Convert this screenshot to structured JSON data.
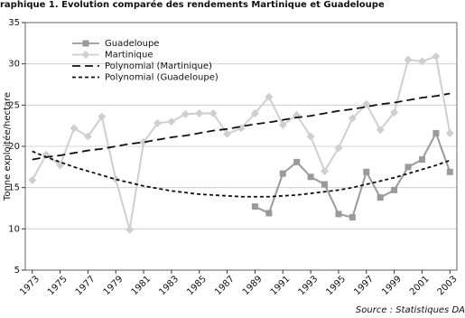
{
  "chart_data": {
    "type": "line",
    "title": "raphique 1. Evolution comparée des rendements Martinique et Guadeloupe",
    "y_label": "Tonne exploitée/hectare",
    "source": "Source : Statistiques DA",
    "x": [
      1973,
      1974,
      1975,
      1976,
      1977,
      1978,
      1979,
      1980,
      1981,
      1982,
      1983,
      1984,
      1985,
      1986,
      1987,
      1988,
      1989,
      1990,
      1991,
      1992,
      1993,
      1994,
      1995,
      1996,
      1997,
      1998,
      1999,
      2000,
      2001,
      2002,
      2003
    ],
    "xlim": [
      1972.5,
      2003.5
    ],
    "xticks": [
      1973,
      1975,
      1977,
      1979,
      1981,
      1983,
      1985,
      1987,
      1989,
      1991,
      1993,
      1995,
      1997,
      1999,
      2001,
      2003
    ],
    "ylim": [
      5,
      35
    ],
    "yticks": [
      5,
      10,
      15,
      20,
      25,
      30,
      35
    ],
    "grid": true,
    "series": [
      {
        "name": "Guadeloupe",
        "color": "#9a9a9a",
        "marker": "square",
        "values": [
          null,
          null,
          null,
          null,
          null,
          null,
          null,
          null,
          null,
          null,
          null,
          null,
          null,
          null,
          null,
          null,
          12.7,
          11.9,
          16.7,
          18.1,
          16.3,
          15.4,
          11.8,
          11.4,
          16.9,
          13.8,
          14.7,
          17.5,
          18.4,
          21.6,
          16.9
        ]
      },
      {
        "name": "Martinique",
        "color": "#cfcfcf",
        "marker": "diamond",
        "values": [
          15.9,
          19.0,
          17.7,
          22.2,
          21.2,
          23.6,
          16.0,
          9.9,
          20.5,
          22.8,
          23.0,
          23.9,
          24.0,
          24.0,
          21.5,
          22.2,
          24.0,
          26.0,
          22.6,
          23.8,
          21.2,
          17.0,
          19.8,
          23.4,
          25.1,
          22.0,
          24.1,
          30.5,
          30.3,
          30.9,
          21.6
        ]
      },
      {
        "name": "Polynomial (Martinique)",
        "color": "#111111",
        "marker": "none",
        "dash": "9,5",
        "values": [
          18.4,
          18.7,
          18.9,
          19.2,
          19.5,
          19.7,
          20.0,
          20.3,
          20.5,
          20.8,
          21.1,
          21.3,
          21.6,
          21.9,
          22.1,
          22.4,
          22.7,
          22.9,
          23.2,
          23.5,
          23.7,
          24.0,
          24.3,
          24.5,
          24.8,
          25.1,
          25.3,
          25.6,
          25.9,
          26.1,
          26.4
        ]
      },
      {
        "name": "Polynomial (Guadeloupe)",
        "color": "#111111",
        "marker": "none",
        "dash": "4,3",
        "values": [
          19.4,
          18.7,
          18.1,
          17.5,
          17.0,
          16.5,
          16.0,
          15.6,
          15.2,
          14.9,
          14.6,
          14.4,
          14.2,
          14.1,
          14.0,
          13.9,
          13.9,
          13.9,
          14.0,
          14.1,
          14.3,
          14.5,
          14.7,
          15.0,
          15.4,
          15.8,
          16.2,
          16.7,
          17.2,
          17.7,
          18.3
        ]
      }
    ]
  }
}
